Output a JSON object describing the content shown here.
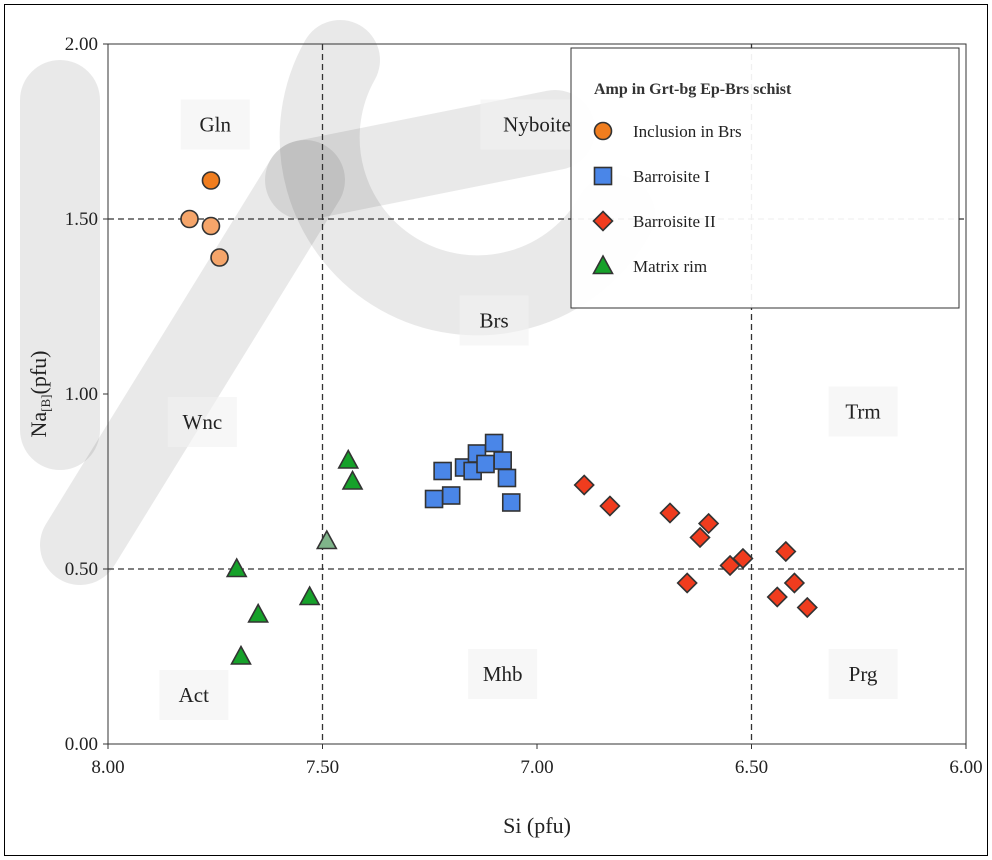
{
  "chart_data": {
    "type": "scatter",
    "xlabel": "Si (pfu)",
    "ylabel": {
      "main": "Na",
      "sub": "[B]",
      "suffix": "(pfu)"
    },
    "xlim": [
      8.0,
      6.0
    ],
    "ylim": [
      0.0,
      2.0
    ],
    "x_reversed": true,
    "xticks": [
      8.0,
      7.5,
      7.0,
      6.5,
      6.0
    ],
    "xtick_labels": [
      "8.00",
      "7.50",
      "7.00",
      "6.50",
      "6.00"
    ],
    "yticks": [
      0.0,
      0.5,
      1.0,
      1.5,
      2.0
    ],
    "ytick_labels": [
      "0.00",
      "0.50",
      "1.00",
      "1.50",
      "2.00"
    ],
    "grid": false,
    "boundaries": {
      "x": [
        7.5,
        6.5
      ],
      "y": [
        0.5,
        1.5
      ]
    },
    "field_labels": [
      {
        "text": "Gln",
        "x": 7.75,
        "y": 1.77
      },
      {
        "text": "Nyboite",
        "x": 7.0,
        "y": 1.77
      },
      {
        "text": "Brs",
        "x": 7.1,
        "y": 1.21
      },
      {
        "text": "Wnc",
        "x": 7.78,
        "y": 0.92
      },
      {
        "text": "Trm",
        "x": 6.24,
        "y": 0.95
      },
      {
        "text": "Act",
        "x": 7.8,
        "y": 0.14
      },
      {
        "text": "Mhb",
        "x": 7.08,
        "y": 0.2
      },
      {
        "text": "Prg",
        "x": 6.24,
        "y": 0.2
      }
    ],
    "legend": {
      "title": "Amp in Grt-bg Ep-Brs schist",
      "position": "top-right"
    },
    "series": [
      {
        "name": "Inclusion in Brs",
        "marker": "circle",
        "color": "#f5a56a",
        "legend_color": "#f07d1e",
        "points": [
          {
            "x": 7.76,
            "y": 1.61,
            "color": "#f07d1e"
          },
          {
            "x": 7.81,
            "y": 1.5
          },
          {
            "x": 7.76,
            "y": 1.48
          },
          {
            "x": 7.74,
            "y": 1.39
          }
        ]
      },
      {
        "name": "Barroisite I",
        "marker": "square",
        "color": "#4a86e8",
        "points": [
          {
            "x": 7.24,
            "y": 0.7
          },
          {
            "x": 7.22,
            "y": 0.78
          },
          {
            "x": 7.2,
            "y": 0.71
          },
          {
            "x": 7.17,
            "y": 0.79
          },
          {
            "x": 7.15,
            "y": 0.78
          },
          {
            "x": 7.14,
            "y": 0.83
          },
          {
            "x": 7.12,
            "y": 0.8
          },
          {
            "x": 7.1,
            "y": 0.86
          },
          {
            "x": 7.08,
            "y": 0.81
          },
          {
            "x": 7.07,
            "y": 0.76
          },
          {
            "x": 7.06,
            "y": 0.69
          }
        ]
      },
      {
        "name": "Barroisite II",
        "marker": "diamond",
        "color": "#f03c1e",
        "points": [
          {
            "x": 6.89,
            "y": 0.74
          },
          {
            "x": 6.83,
            "y": 0.68
          },
          {
            "x": 6.69,
            "y": 0.66
          },
          {
            "x": 6.6,
            "y": 0.63
          },
          {
            "x": 6.62,
            "y": 0.59
          },
          {
            "x": 6.55,
            "y": 0.51
          },
          {
            "x": 6.52,
            "y": 0.53
          },
          {
            "x": 6.65,
            "y": 0.46
          },
          {
            "x": 6.42,
            "y": 0.55
          },
          {
            "x": 6.4,
            "y": 0.46
          },
          {
            "x": 6.44,
            "y": 0.42
          },
          {
            "x": 6.37,
            "y": 0.39
          }
        ]
      },
      {
        "name": "Matrix rim",
        "marker": "triangle",
        "color": "#16a12a",
        "points": [
          {
            "x": 7.7,
            "y": 0.5
          },
          {
            "x": 7.65,
            "y": 0.37
          },
          {
            "x": 7.69,
            "y": 0.25
          },
          {
            "x": 7.53,
            "y": 0.42
          },
          {
            "x": 7.49,
            "y": 0.58,
            "color": "#7fb48a"
          },
          {
            "x": 7.43,
            "y": 0.75
          },
          {
            "x": 7.44,
            "y": 0.81
          }
        ]
      }
    ]
  }
}
